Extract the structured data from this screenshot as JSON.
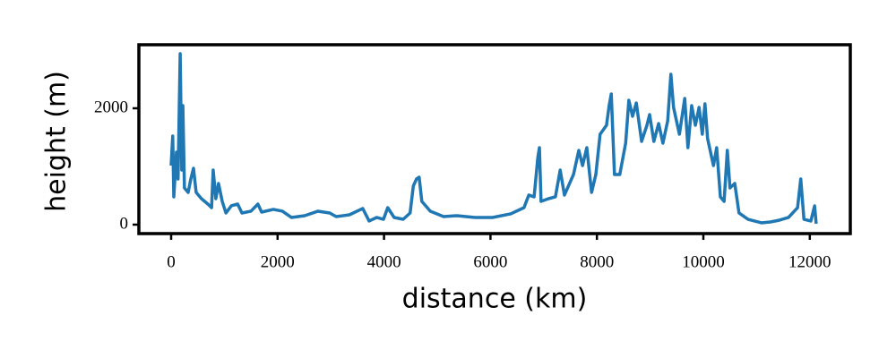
{
  "chart_data": {
    "type": "line",
    "xlabel": "distance (km)",
    "ylabel": "height (m)",
    "xlim": [
      -606,
      12761
    ],
    "ylim": [
      -154,
      3092
    ],
    "xticks": [
      0,
      2000,
      4000,
      6000,
      8000,
      10000,
      12000
    ],
    "yticks": [
      0,
      2000
    ],
    "series": [
      {
        "color": "#1f77b4",
        "x": [
          0,
          30,
          50,
          100,
          130,
          170,
          200,
          220,
          250,
          320,
          370,
          420,
          470,
          570,
          690,
          760,
          790,
          840,
          890,
          960,
          1030,
          1130,
          1250,
          1330,
          1500,
          1630,
          1700,
          1920,
          2090,
          2260,
          2510,
          2760,
          2980,
          3100,
          3350,
          3600,
          3720,
          3860,
          3990,
          4070,
          4190,
          4360,
          4490,
          4550,
          4610,
          4660,
          4710,
          4870,
          5120,
          5370,
          5710,
          6040,
          6380,
          6630,
          6720,
          6820,
          6890,
          6920,
          6950,
          7090,
          7220,
          7310,
          7390,
          7560,
          7660,
          7730,
          7810,
          7900,
          7980,
          8060,
          8180,
          8230,
          8270,
          8330,
          8430,
          8540,
          8600,
          8670,
          8740,
          8840,
          8940,
          8990,
          9070,
          9160,
          9240,
          9330,
          9390,
          9440,
          9550,
          9650,
          9710,
          9780,
          9850,
          9920,
          9980,
          10030,
          10080,
          10190,
          10250,
          10320,
          10390,
          10450,
          10500,
          10590,
          10670,
          10840,
          11090,
          11260,
          11430,
          11600,
          11770,
          11830,
          11890,
          12020,
          12090,
          12120
        ],
        "values": [
          1015,
          1523,
          477,
          1246,
          785,
          2938,
          938,
          2046,
          631,
          554,
          785,
          969,
          554,
          446,
          354,
          292,
          938,
          446,
          708,
          400,
          200,
          323,
          354,
          200,
          231,
          354,
          215,
          262,
          231,
          123,
          154,
          231,
          200,
          138,
          169,
          277,
          62,
          123,
          92,
          292,
          123,
          92,
          200,
          662,
          785,
          815,
          400,
          231,
          138,
          154,
          123,
          123,
          185,
          292,
          508,
          477,
          1154,
          1323,
          400,
          446,
          477,
          938,
          508,
          862,
          1277,
          1015,
          1323,
          554,
          862,
          1554,
          1708,
          2046,
          2246,
          862,
          862,
          1400,
          2138,
          1862,
          2092,
          1431,
          1708,
          1892,
          1431,
          1738,
          1400,
          1785,
          2585,
          2015,
          1554,
          2169,
          1323,
          2046,
          1708,
          2015,
          1554,
          2077,
          1477,
          1015,
          1323,
          477,
          400,
          1277,
          631,
          708,
          200,
          92,
          31,
          46,
          77,
          123,
          292,
          785,
          92,
          62,
          323,
          15
        ]
      }
    ]
  }
}
